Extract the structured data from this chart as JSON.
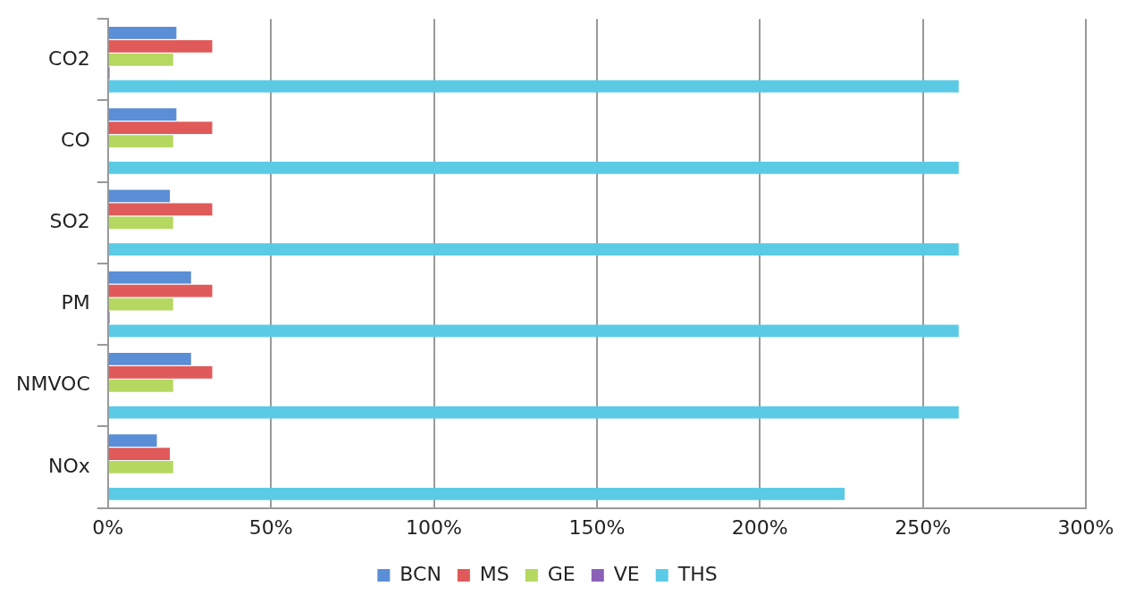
{
  "chart_data": {
    "type": "bar",
    "orientation": "horizontal",
    "categories": [
      "CO2",
      "CO",
      "SO2",
      "PM",
      "NMVOC",
      "NOx"
    ],
    "series": [
      {
        "name": "BCN",
        "color": "#5a8ed6",
        "values": [
          21,
          21,
          19,
          25.5,
          25.5,
          15
        ]
      },
      {
        "name": "MS",
        "color": "#e05a5a",
        "values": [
          32,
          32,
          32,
          32,
          32,
          19
        ]
      },
      {
        "name": "GE",
        "color": "#b5d860",
        "values": [
          20,
          20,
          20,
          20,
          20,
          20
        ]
      },
      {
        "name": "VE",
        "color": "#8a60b8",
        "values": [
          0.5,
          null,
          null,
          0.5,
          null,
          null
        ]
      },
      {
        "name": "THS",
        "color": "#5bcbe5",
        "values": [
          261,
          261,
          261,
          261,
          261,
          226
        ]
      }
    ],
    "xlim": [
      0,
      300
    ],
    "xticks": [
      {
        "value": 0,
        "label": "0%"
      },
      {
        "value": 50,
        "label": "50%"
      },
      {
        "value": 100,
        "label": "100%"
      },
      {
        "value": 150,
        "label": "150%"
      },
      {
        "value": 200,
        "label": "200%"
      },
      {
        "value": 250,
        "label": "250%"
      },
      {
        "value": 300,
        "label": "300%"
      }
    ],
    "grid": "x",
    "legend": "bottom"
  }
}
